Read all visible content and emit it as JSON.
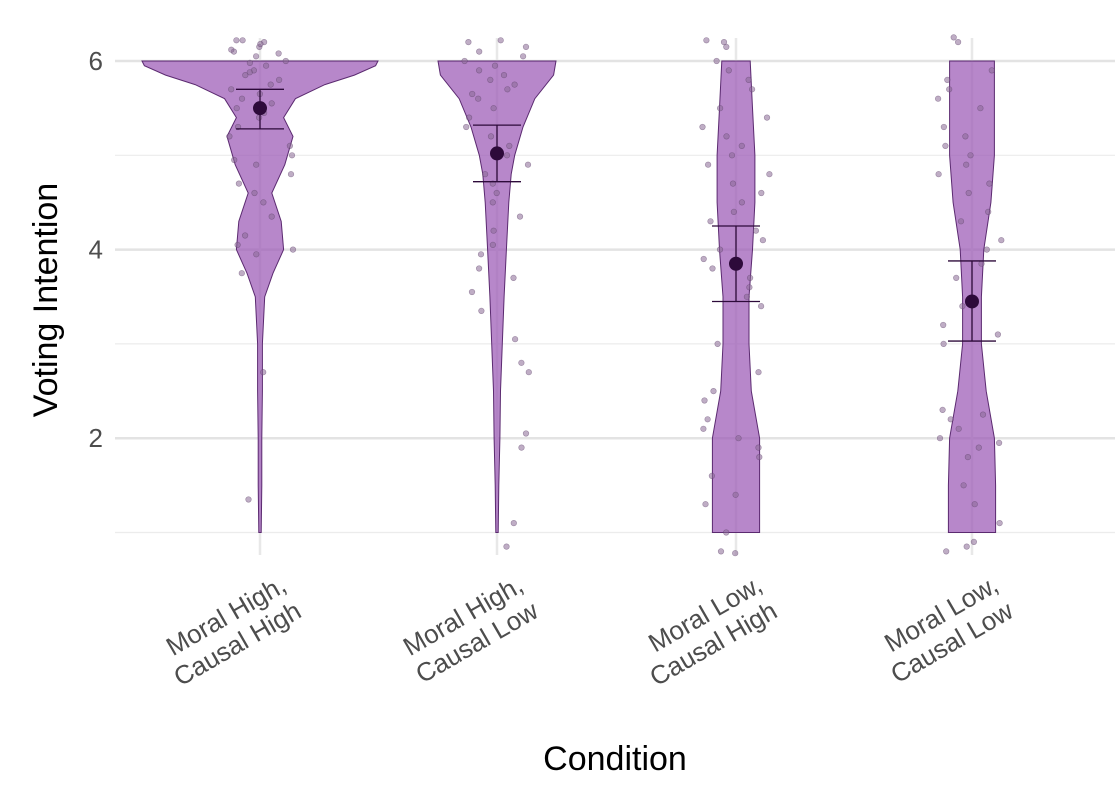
{
  "chart_data": {
    "type": "violin",
    "xlabel": "Condition",
    "ylabel": "Voting Intention",
    "ylim": [
      0.6,
      6.55
    ],
    "yticks": [
      2,
      4,
      6
    ],
    "y_minor_gridlines": [
      1,
      3,
      5
    ],
    "grid": true,
    "categories": [
      [
        "Moral High,",
        "Causal High"
      ],
      [
        "Moral High,",
        "Causal Low"
      ],
      [
        "Moral Low,",
        "Causal High"
      ],
      [
        "Moral Low,",
        "Causal Low"
      ]
    ],
    "fill_color": "#9b59b6",
    "point_color": "#2d0a3a",
    "groups": [
      {
        "mean": 5.5,
        "ci": [
          5.28,
          5.7
        ],
        "density": [
          [
            1.0,
            0.01
          ],
          [
            1.5,
            0.015
          ],
          [
            2.0,
            0.015
          ],
          [
            2.5,
            0.02
          ],
          [
            3.0,
            0.02
          ],
          [
            3.5,
            0.04
          ],
          [
            3.75,
            0.11
          ],
          [
            4.0,
            0.2
          ],
          [
            4.3,
            0.18
          ],
          [
            4.6,
            0.1
          ],
          [
            4.9,
            0.21
          ],
          [
            5.2,
            0.28
          ],
          [
            5.4,
            0.2
          ],
          [
            5.6,
            0.3
          ],
          [
            5.75,
            0.55
          ],
          [
            5.85,
            0.8
          ],
          [
            5.95,
            0.98
          ],
          [
            6.0,
            1.0
          ]
        ],
        "jitter": [
          6.15,
          6.2,
          6.1,
          6.22,
          6.05,
          6.18,
          6.12,
          6.0,
          5.95,
          5.9,
          5.85,
          5.8,
          5.75,
          5.7,
          5.65,
          5.6,
          5.55,
          5.5,
          5.45,
          5.4,
          5.3,
          5.2,
          5.1,
          5.0,
          4.95,
          4.9,
          4.8,
          4.7,
          4.6,
          4.5,
          4.35,
          4.15,
          4.05,
          4.0,
          3.95,
          3.75,
          2.7,
          1.35,
          6.22,
          6.08,
          5.98,
          5.88
        ]
      },
      {
        "mean": 5.02,
        "ci": [
          4.72,
          5.32
        ],
        "density": [
          [
            1.0,
            0.01
          ],
          [
            1.5,
            0.015
          ],
          [
            2.0,
            0.025
          ],
          [
            2.5,
            0.03
          ],
          [
            3.0,
            0.045
          ],
          [
            3.5,
            0.06
          ],
          [
            4.0,
            0.08
          ],
          [
            4.5,
            0.1
          ],
          [
            4.8,
            0.12
          ],
          [
            5.0,
            0.15
          ],
          [
            5.3,
            0.22
          ],
          [
            5.6,
            0.32
          ],
          [
            5.85,
            0.48
          ],
          [
            6.0,
            0.5
          ]
        ],
        "jitter": [
          6.2,
          6.15,
          6.1,
          6.05,
          5.95,
          5.9,
          5.85,
          5.8,
          5.75,
          5.7,
          5.65,
          5.6,
          5.5,
          5.4,
          5.3,
          5.2,
          5.1,
          5.0,
          4.9,
          4.8,
          4.7,
          4.6,
          4.5,
          4.35,
          4.2,
          4.05,
          3.95,
          3.8,
          3.7,
          3.55,
          3.35,
          3.05,
          2.8,
          2.7,
          2.05,
          1.9,
          1.1,
          0.85,
          6.22,
          6.0
        ]
      },
      {
        "mean": 3.85,
        "ci": [
          3.45,
          4.25
        ],
        "density": [
          [
            1.0,
            0.2
          ],
          [
            1.5,
            0.2
          ],
          [
            2.0,
            0.2
          ],
          [
            2.5,
            0.13
          ],
          [
            3.0,
            0.11
          ],
          [
            3.5,
            0.11
          ],
          [
            4.0,
            0.14
          ],
          [
            4.5,
            0.16
          ],
          [
            5.0,
            0.16
          ],
          [
            5.5,
            0.14
          ],
          [
            6.0,
            0.12
          ]
        ],
        "jitter": [
          6.2,
          6.15,
          6.0,
          5.9,
          5.8,
          5.7,
          5.5,
          5.4,
          5.3,
          5.2,
          5.1,
          5.0,
          4.9,
          4.8,
          4.7,
          4.6,
          4.5,
          4.4,
          4.3,
          4.2,
          4.1,
          4.0,
          3.9,
          3.8,
          3.7,
          3.6,
          3.5,
          3.4,
          3.0,
          2.7,
          2.5,
          2.4,
          2.2,
          2.1,
          2.0,
          1.9,
          1.8,
          1.6,
          1.4,
          1.3,
          0.8,
          0.78,
          6.22,
          1.0
        ]
      },
      {
        "mean": 3.45,
        "ci": [
          3.03,
          3.88
        ],
        "density": [
          [
            1.0,
            0.2
          ],
          [
            1.5,
            0.2
          ],
          [
            2.0,
            0.19
          ],
          [
            2.5,
            0.12
          ],
          [
            3.0,
            0.08
          ],
          [
            3.5,
            0.08
          ],
          [
            4.0,
            0.1
          ],
          [
            4.5,
            0.16
          ],
          [
            5.0,
            0.19
          ],
          [
            5.5,
            0.19
          ],
          [
            6.0,
            0.19
          ]
        ],
        "jitter": [
          6.25,
          6.2,
          5.9,
          5.8,
          5.7,
          5.6,
          5.5,
          5.3,
          5.2,
          5.1,
          5.0,
          4.9,
          4.8,
          4.7,
          4.6,
          4.4,
          4.3,
          4.1,
          4.0,
          3.85,
          3.7,
          3.4,
          3.2,
          3.1,
          3.0,
          2.3,
          2.2,
          2.1,
          2.0,
          1.9,
          1.8,
          1.5,
          1.3,
          1.1,
          0.9,
          0.85,
          0.8,
          1.95,
          2.25
        ]
      }
    ]
  }
}
